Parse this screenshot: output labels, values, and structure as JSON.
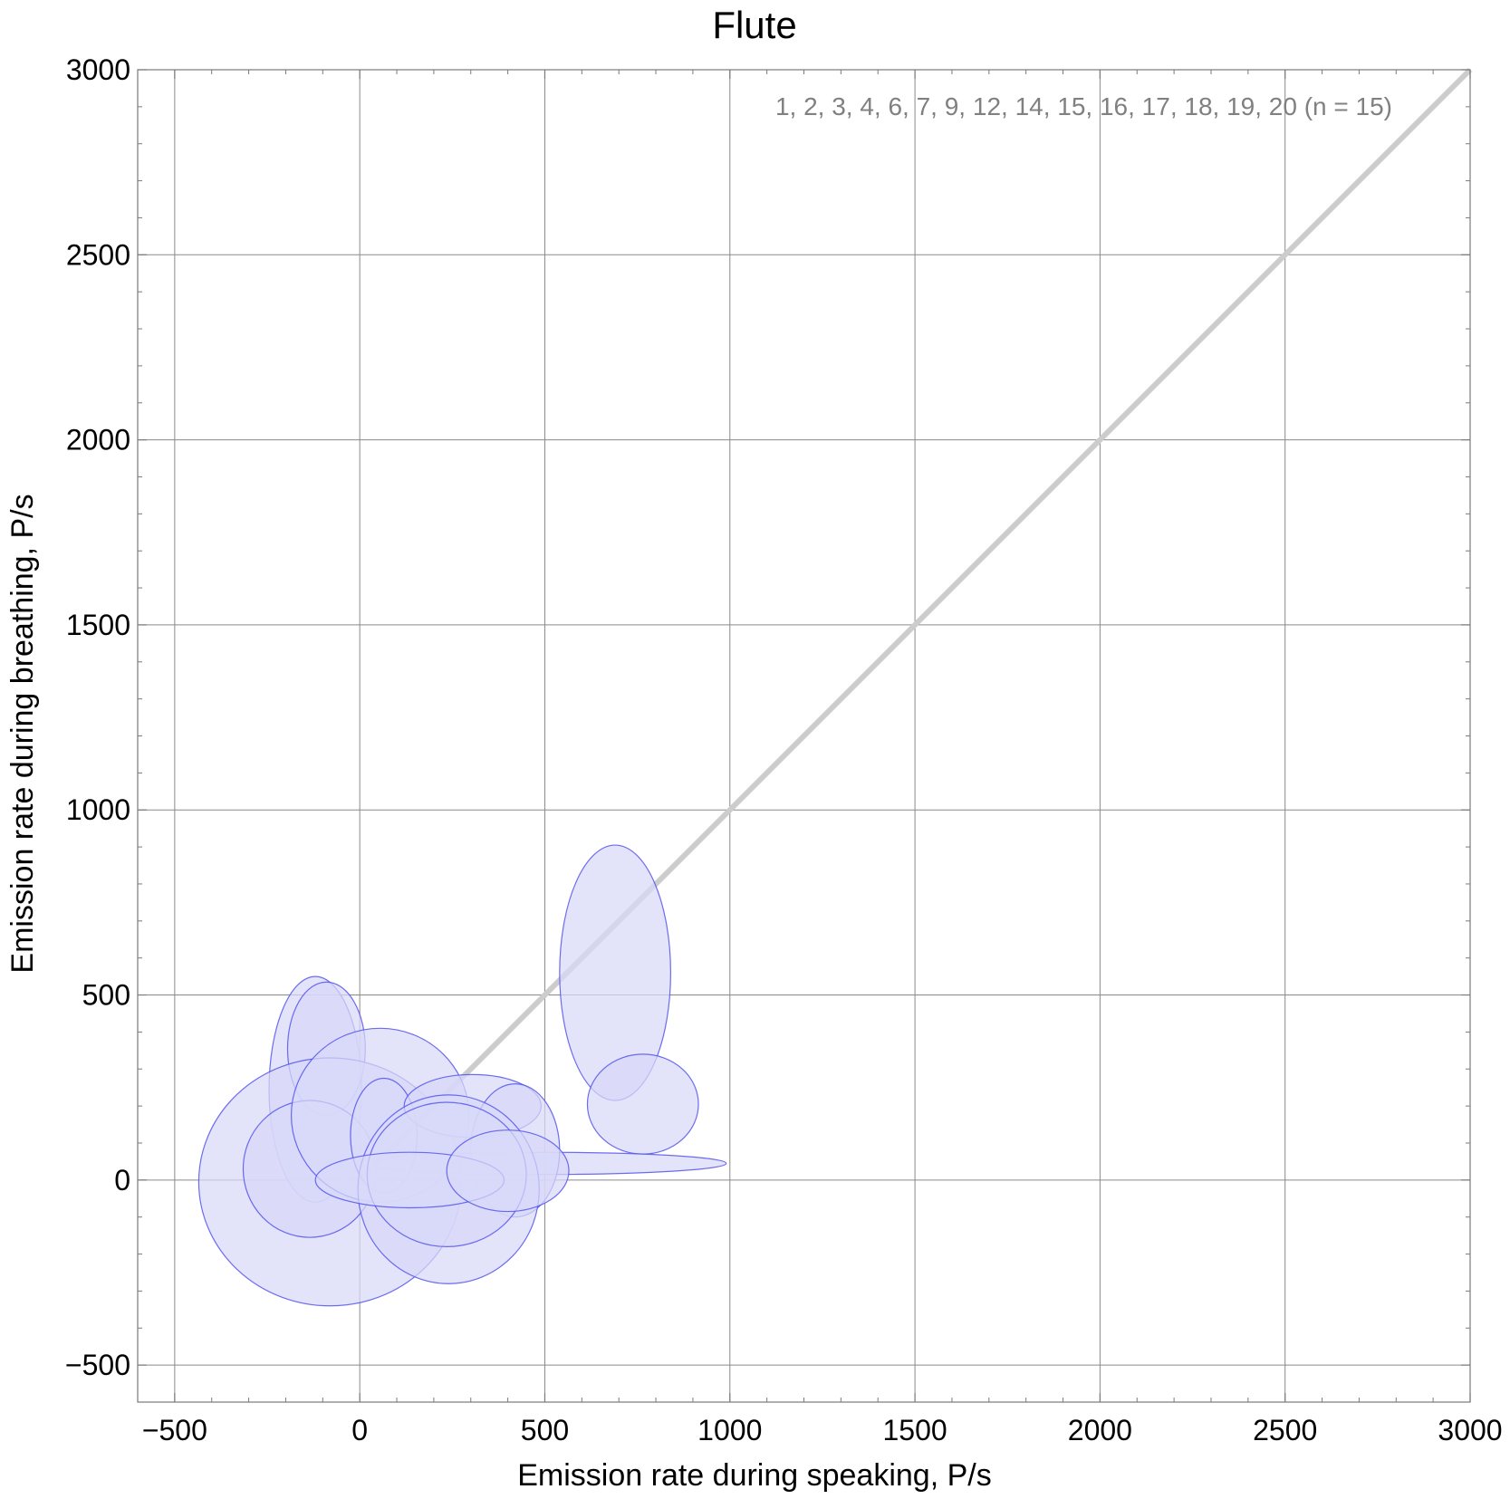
{
  "chart_data": {
    "type": "scatter",
    "title": "Flute",
    "xlabel": "Emission rate during speaking,  P/s",
    "ylabel": "Emission rate during breathing,  P/s",
    "xlim": [
      -600,
      3000
    ],
    "ylim": [
      -600,
      3000
    ],
    "x_ticks": [
      -500,
      0,
      500,
      1000,
      1500,
      2000,
      2500,
      3000
    ],
    "y_ticks": [
      -500,
      0,
      500,
      1000,
      1500,
      2000,
      2500,
      3000
    ],
    "x_tick_labels": [
      "−500",
      "0",
      "500",
      "1000",
      "1500",
      "2000",
      "2500",
      "3000"
    ],
    "y_tick_labels": [
      "−500",
      "0",
      "500",
      "1000",
      "1500",
      "2000",
      "2500",
      "3000"
    ],
    "grid": true,
    "annotation": "1, 2, 3, 4, 6, 7, 9, 12, 14, 15, 16, 17, 18, 19, 20  (n = 15)",
    "reference_line": {
      "from": [
        0,
        0
      ],
      "to": [
        3000,
        3000
      ],
      "color": "#cccccc"
    },
    "ellipse_color": "#5555ee",
    "ellipse_fill": "#d8d8f8",
    "series": [
      {
        "type": "ellipse",
        "cx": 690,
        "cy": 560,
        "rx": 150,
        "ry": 345
      },
      {
        "type": "ellipse",
        "cx": 765,
        "cy": 205,
        "rx": 150,
        "ry": 135
      },
      {
        "type": "ellipse",
        "cx": 495,
        "cy": 45,
        "rx": 495,
        "ry": 30
      },
      {
        "type": "ellipse",
        "cx": -120,
        "cy": 245,
        "rx": 125,
        "ry": 305
      },
      {
        "type": "ellipse",
        "cx": -90,
        "cy": 355,
        "rx": 105,
        "ry": 180
      },
      {
        "type": "ellipse",
        "cx": -80,
        "cy": -5,
        "rx": 355,
        "ry": 335
      },
      {
        "type": "ellipse",
        "cx": -135,
        "cy": 30,
        "rx": 180,
        "ry": 185
      },
      {
        "type": "ellipse",
        "cx": 55,
        "cy": 175,
        "rx": 240,
        "ry": 235
      },
      {
        "type": "ellipse",
        "cx": 65,
        "cy": 120,
        "rx": 90,
        "ry": 155
      },
      {
        "type": "ellipse",
        "cx": 305,
        "cy": 200,
        "rx": 185,
        "ry": 85
      },
      {
        "type": "ellipse",
        "cx": 420,
        "cy": 80,
        "rx": 120,
        "ry": 180
      },
      {
        "type": "ellipse",
        "cx": 240,
        "cy": -25,
        "rx": 245,
        "ry": 255
      },
      {
        "type": "ellipse",
        "cx": 235,
        "cy": 15,
        "rx": 215,
        "ry": 195
      },
      {
        "type": "ellipse",
        "cx": 135,
        "cy": 0,
        "rx": 255,
        "ry": 75
      },
      {
        "type": "ellipse",
        "cx": 400,
        "cy": 25,
        "rx": 165,
        "ry": 110
      }
    ]
  }
}
